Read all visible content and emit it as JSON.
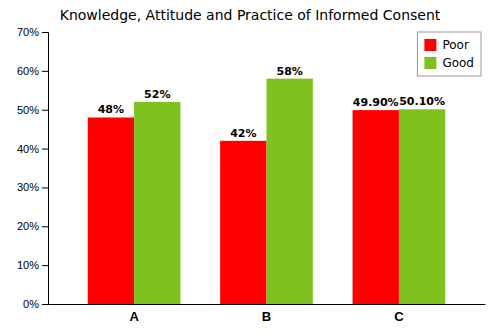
{
  "chart_data": {
    "type": "bar",
    "title": "Knowledge, Attitude and Practice of Informed Consent",
    "categories": [
      "A",
      "B",
      "C"
    ],
    "series": [
      {
        "name": "Poor",
        "color": "#ff0000",
        "values": [
          48,
          42,
          49.9
        ],
        "value_labels": [
          "48%",
          "42%",
          "49.90%"
        ]
      },
      {
        "name": "Good",
        "color": "#7dc21e",
        "values": [
          52,
          58,
          50.1
        ],
        "value_labels": [
          "52%",
          "58%",
          "50.10%"
        ]
      }
    ],
    "ylim": [
      0,
      70
    ],
    "yticks": [
      {
        "value": 0,
        "label": "0%"
      },
      {
        "value": 10,
        "label": "10%"
      },
      {
        "value": 20,
        "label": "20%"
      },
      {
        "value": 30,
        "label": "30%"
      },
      {
        "value": 40,
        "label": "40%"
      },
      {
        "value": 50,
        "label": "50%"
      },
      {
        "value": 60,
        "label": "60%"
      },
      {
        "value": 70,
        "label": "70%"
      }
    ],
    "data_labels": true,
    "legend": "upper right",
    "grid": false
  }
}
